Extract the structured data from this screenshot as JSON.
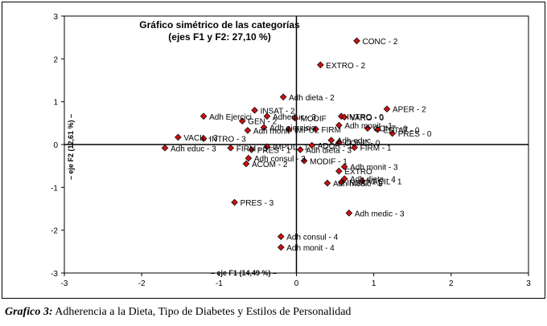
{
  "caption": {
    "label": "Grafico 3:",
    "text": " Adherencia  a la Dieta, Tipo de Diabetes y Estilos de Personalidad"
  },
  "chart_data": {
    "type": "scatter",
    "title_line1": "Gráfico simétrico de las categorías",
    "title_line2": "(ejes F1 y F2: 27,10 %)",
    "xlabel": "– eje F1 (14,49 %) –",
    "ylabel": "– eje F2 (12,61 %) –",
    "xlim": [
      -3,
      3
    ],
    "ylim": [
      -3,
      3
    ],
    "xticks": [
      "-3",
      "-2",
      "-1",
      "0",
      "1",
      "2",
      "3"
    ],
    "yticks": [
      "3",
      "2",
      "1",
      "0",
      "-1",
      "-2",
      "-3"
    ],
    "marker_color": "#cc1111",
    "grid": false,
    "legend": "none",
    "points": [
      {
        "label": "CONC - 2",
        "x": 0.78,
        "y": 2.42
      },
      {
        "label": "EXTRO - 2",
        "x": 0.31,
        "y": 1.86
      },
      {
        "label": "Adh dieta - 2",
        "x": -0.17,
        "y": 1.11
      },
      {
        "label": "APER - 2",
        "x": 1.17,
        "y": 0.83
      },
      {
        "label": "INSAT - 2",
        "x": -0.54,
        "y": 0.8
      },
      {
        "label": "Adheduc - 3",
        "x": -0.38,
        "y": 0.66
      },
      {
        "label": "INTRO - 0",
        "x": 0.58,
        "y": 0.66
      },
      {
        "label": "VARO - 0",
        "x": 0.62,
        "y": 0.64
      },
      {
        "label": "Adh Ejercici",
        "x": -1.2,
        "y": 0.66
      },
      {
        "label": "GEN - 2",
        "x": -0.7,
        "y": 0.55
      },
      {
        "label": "MODIF",
        "x": -0.02,
        "y": 0.62
      },
      {
        "label": "Adh monit - 1",
        "x": 0.55,
        "y": 0.45
      },
      {
        "label": "Adh ejercicio",
        "x": -0.42,
        "y": 0.4
      },
      {
        "label": "IMPUL",
        "x": -0.1,
        "y": 0.35
      },
      {
        "label": "FIRM",
        "x": 0.25,
        "y": 0.36
      },
      {
        "label": "CONT - 0",
        "x": 0.92,
        "y": 0.38
      },
      {
        "label": "ESTAT - 0",
        "x": 1.05,
        "y": 0.35
      },
      {
        "label": "PRES - 0",
        "x": 1.24,
        "y": 0.26
      },
      {
        "label": "Adh monit",
        "x": -0.63,
        "y": 0.33
      },
      {
        "label": "VACIL - 3",
        "x": -1.53,
        "y": 0.17
      },
      {
        "label": "INTRO - 3",
        "x": -1.2,
        "y": 0.14
      },
      {
        "label": "Adh educ - 3",
        "x": -1.7,
        "y": -0.08
      },
      {
        "label": "FIRM - 3",
        "x": -0.85,
        "y": -0.08
      },
      {
        "label": "PRES - 1",
        "x": -0.58,
        "y": -0.12
      },
      {
        "label": "IMPUL - 1",
        "x": -0.38,
        "y": -0.05
      },
      {
        "label": "Adh dieta - 3",
        "x": 0.05,
        "y": -0.12
      },
      {
        "label": "ADOR - 1",
        "x": 0.2,
        "y": -0.02
      },
      {
        "label": "FIRM - 1",
        "x": 0.75,
        "y": -0.07
      },
      {
        "label": "Adh educ",
        "x": 0.45,
        "y": 0.1
      },
      {
        "label": "CONC - 0",
        "x": 0.55,
        "y": 0.05
      },
      {
        "label": "MODIF - 1",
        "x": 0.1,
        "y": -0.38
      },
      {
        "label": "Adh consul - 3",
        "x": -0.62,
        "y": -0.32
      },
      {
        "label": "ACOM - 2",
        "x": -0.65,
        "y": -0.45
      },
      {
        "label": "Adh monit - 3",
        "x": 0.62,
        "y": -0.52
      },
      {
        "label": "EXTRO",
        "x": 0.55,
        "y": -0.62
      },
      {
        "label": "Adh dieta - 4",
        "x": 0.62,
        "y": -0.8
      },
      {
        "label": "VACIL - 1",
        "x": 0.85,
        "y": -0.85
      },
      {
        "label": "INSAT - 1",
        "x": 0.58,
        "y": -0.88
      },
      {
        "label": "Adh medic - 3",
        "x": 0.4,
        "y": -0.9
      },
      {
        "label": "PRES - 3",
        "x": -0.8,
        "y": -1.35
      },
      {
        "label": "Adh medic - 3",
        "x": 0.68,
        "y": -1.6
      },
      {
        "label": "Adh consul - 4",
        "x": -0.2,
        "y": -2.15
      },
      {
        "label": "Adh monit - 4",
        "x": -0.2,
        "y": -2.4
      }
    ]
  }
}
